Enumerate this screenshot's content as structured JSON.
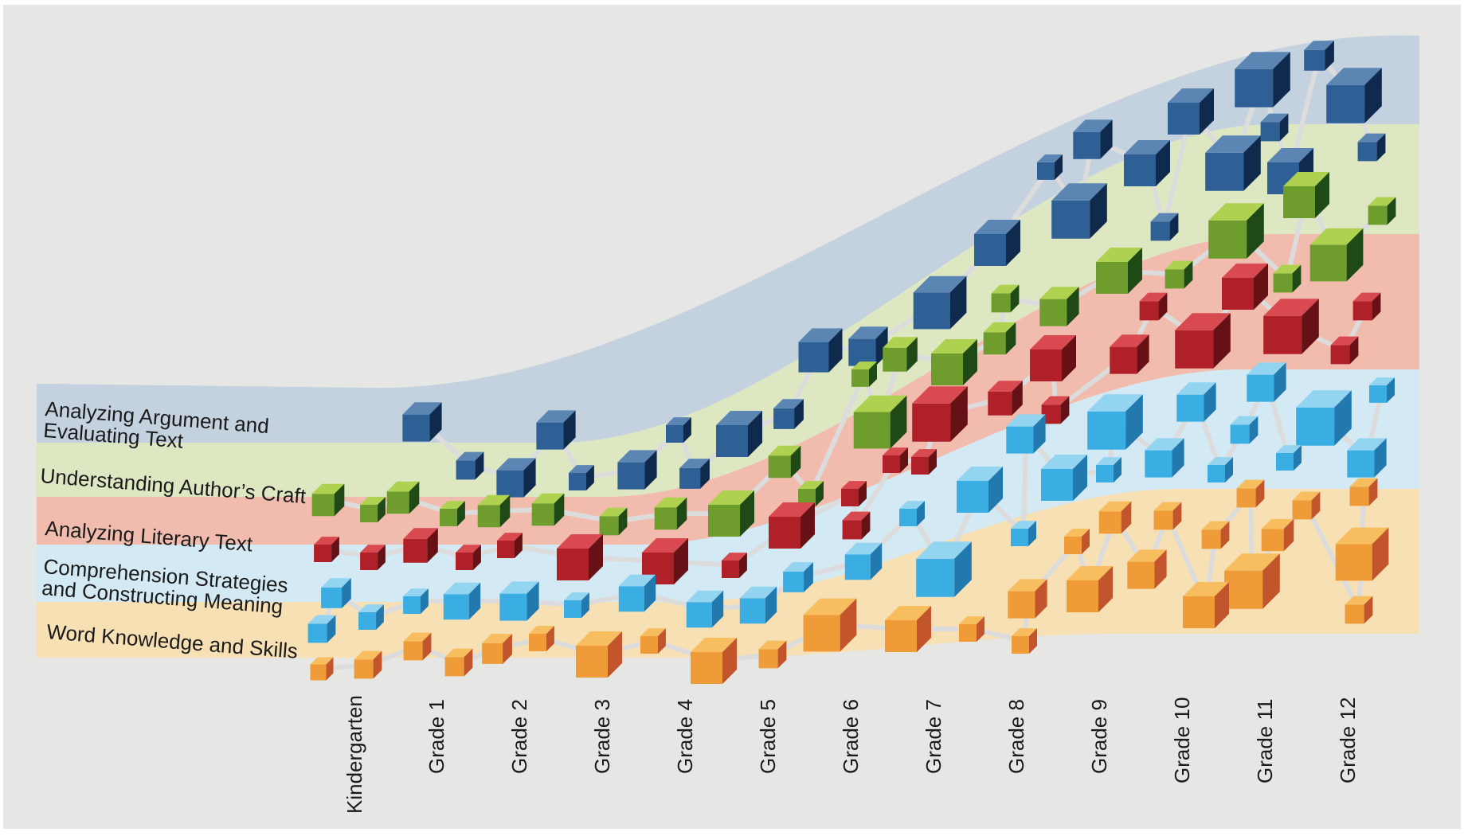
{
  "colors": {
    "background": "#e6e6e4",
    "frame": "#ffffff",
    "connector": "#dcdcdc",
    "bands": {
      "argument": "#c4d1df",
      "craft": "#dde8c2",
      "literary": "#f1bcae",
      "comprehension": "#d3e9f4",
      "word": "#f7e0b4"
    },
    "cubes": {
      "argument": [
        "#5b86b4",
        "#2e5f95",
        "#0f2a4c"
      ],
      "craft": [
        "#aed14f",
        "#6e9d2e",
        "#1f4a16"
      ],
      "literary": [
        "#d84a50",
        "#b02029",
        "#651115"
      ],
      "comprehension": [
        "#93d4f1",
        "#3aade3",
        "#2279ad"
      ],
      "word": [
        "#f7bd5e",
        "#ee9b38",
        "#c2552b"
      ]
    }
  },
  "strands": [
    {
      "id": "argument",
      "lines": [
        "Analyzing Argument and",
        "Evaluating Text"
      ]
    },
    {
      "id": "craft",
      "lines": [
        "Understanding Author’s Craft"
      ]
    },
    {
      "id": "literary",
      "lines": [
        "Analyzing Literary Text"
      ]
    },
    {
      "id": "comprehension",
      "lines": [
        "Comprehension Strategies",
        "and Constructing Meaning"
      ]
    },
    {
      "id": "word",
      "lines": [
        "Word Knowledge and Skills"
      ]
    }
  ],
  "grades": [
    "Kindergarten",
    "Grade 1",
    "Grade 2",
    "Grade 3",
    "Grade 4",
    "Grade 5",
    "Grade 6",
    "Grade 7",
    "Grade 8",
    "Grade 9",
    "Grade 10",
    "Grade 11",
    "Grade 12"
  ]
}
